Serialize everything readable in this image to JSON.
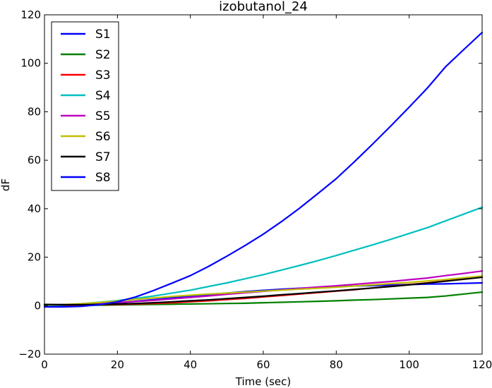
{
  "chart_data": {
    "type": "line",
    "title": "izobutanol_24",
    "xlabel": "Time (sec)",
    "ylabel": "dF",
    "xlim": [
      0,
      120
    ],
    "ylim": [
      -20,
      120
    ],
    "xticks": [
      0,
      20,
      40,
      60,
      80,
      100,
      120
    ],
    "yticks": [
      -20,
      0,
      20,
      40,
      60,
      80,
      100,
      120
    ],
    "xtick_labels": [
      "0",
      "20",
      "40",
      "60",
      "80",
      "100",
      "120"
    ],
    "ytick_labels": [
      "−20",
      "0",
      "20",
      "40",
      "60",
      "80",
      "100",
      "120"
    ],
    "grid": false,
    "legend_position": "top-left",
    "x": [
      0,
      5,
      10,
      15,
      20,
      25,
      30,
      35,
      40,
      45,
      50,
      55,
      60,
      65,
      70,
      75,
      80,
      85,
      90,
      95,
      100,
      105,
      110,
      115,
      120
    ],
    "series": [
      {
        "name": "S1",
        "color": "#0000ff",
        "values": [
          0.2,
          0.0,
          0.2,
          0.6,
          1.2,
          1.8,
          2.5,
          3.2,
          3.9,
          4.6,
          5.2,
          5.8,
          6.3,
          6.8,
          7.2,
          7.6,
          7.8,
          8.1,
          8.3,
          8.5,
          8.7,
          8.9,
          9.0,
          9.2,
          9.4
        ]
      },
      {
        "name": "S2",
        "color": "#008000",
        "values": [
          0.3,
          0.2,
          0.2,
          0.2,
          0.3,
          0.4,
          0.5,
          0.6,
          0.7,
          0.8,
          0.9,
          1.0,
          1.2,
          1.4,
          1.6,
          1.8,
          2.0,
          2.3,
          2.5,
          2.8,
          3.1,
          3.4,
          4.0,
          4.8,
          5.6
        ]
      },
      {
        "name": "S3",
        "color": "#ff0000",
        "values": [
          0.4,
          0.3,
          0.3,
          0.4,
          0.5,
          0.7,
          0.9,
          1.2,
          1.6,
          2.0,
          2.5,
          3.0,
          3.6,
          4.2,
          4.8,
          5.4,
          6.0,
          6.6,
          7.3,
          8.0,
          8.7,
          9.4,
          10.2,
          11.0,
          11.8
        ]
      },
      {
        "name": "S4",
        "color": "#00bfbf",
        "values": [
          0.0,
          0.3,
          0.8,
          1.4,
          2.1,
          3.0,
          4.0,
          5.2,
          6.4,
          7.9,
          9.4,
          11.1,
          12.8,
          14.7,
          16.6,
          18.6,
          20.7,
          22.9,
          25.1,
          27.4,
          29.8,
          32.2,
          35.0,
          37.8,
          40.6
        ]
      },
      {
        "name": "S5",
        "color": "#bf00bf",
        "values": [
          0.3,
          0.4,
          0.6,
          0.9,
          1.3,
          1.7,
          2.2,
          2.8,
          3.4,
          4.0,
          4.7,
          5.3,
          5.9,
          6.5,
          7.1,
          7.7,
          8.2,
          8.8,
          9.4,
          10.0,
          10.7,
          11.4,
          12.4,
          13.3,
          14.3
        ]
      },
      {
        "name": "S6",
        "color": "#bfbf00",
        "values": [
          0.3,
          0.4,
          0.8,
          1.3,
          1.9,
          2.6,
          3.2,
          3.8,
          4.3,
          4.8,
          5.2,
          5.6,
          6.0,
          6.4,
          6.8,
          7.2,
          7.6,
          8.1,
          8.6,
          9.1,
          9.6,
          10.2,
          10.8,
          11.5,
          12.2
        ]
      },
      {
        "name": "S7",
        "color": "#000000",
        "values": [
          0.5,
          0.4,
          0.4,
          0.5,
          0.7,
          0.9,
          1.2,
          1.6,
          2.0,
          2.4,
          2.9,
          3.4,
          3.9,
          4.5,
          5.0,
          5.6,
          6.1,
          6.7,
          7.3,
          7.9,
          8.6,
          9.3,
          10.1,
          10.9,
          11.7
        ]
      },
      {
        "name": "S8",
        "color": "#0000ff",
        "values": [
          -0.5,
          -0.5,
          -0.3,
          0.4,
          1.6,
          3.6,
          6.3,
          9.3,
          12.4,
          16.2,
          20.4,
          24.8,
          29.5,
          34.7,
          40.3,
          46.3,
          52.4,
          59.4,
          66.7,
          74.2,
          81.9,
          89.8,
          98.6,
          105.7,
          112.7
        ]
      }
    ]
  }
}
